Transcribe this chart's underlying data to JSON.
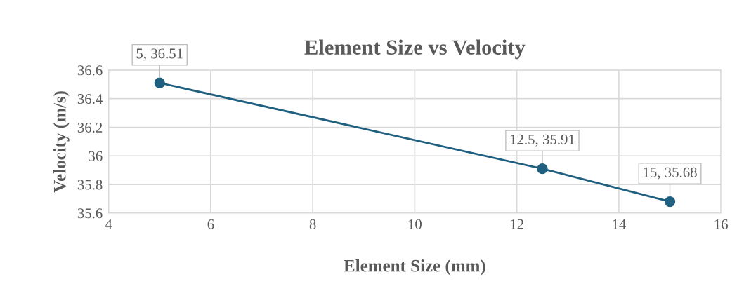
{
  "chart_data": {
    "type": "line",
    "title": "Element Size vs Velocity",
    "xlabel": "Element Size (mm)",
    "ylabel": "Velocity (m/s)",
    "x": [
      5,
      12.5,
      15
    ],
    "series": [
      {
        "color": "#1f5f7f",
        "values": [
          36.51,
          35.91,
          35.68
        ]
      }
    ],
    "xlim": [
      4,
      16
    ],
    "xticks": [
      4,
      6,
      8,
      10,
      12,
      14,
      16
    ],
    "ylim": [
      35.6,
      36.6
    ],
    "yticks": [
      35.6,
      35.8,
      36,
      36.2,
      36.4,
      36.6
    ],
    "grid": true,
    "marker": "circle",
    "line_style": "solid",
    "annotations": [
      {
        "text": "5, 36.51",
        "x": 5,
        "y": 36.51
      },
      {
        "text": "12.5, 35.91",
        "x": 12.5,
        "y": 35.91
      },
      {
        "text": "15, 35.68",
        "x": 15,
        "y": 35.68
      }
    ]
  }
}
